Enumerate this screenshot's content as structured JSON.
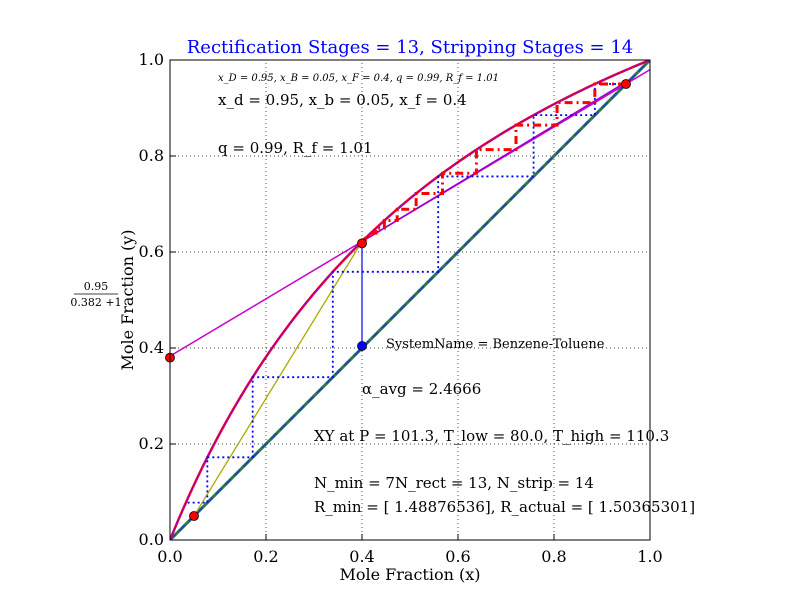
{
  "chart_data": {
    "type": "line",
    "title": "Rectification Stages = 13, Stripping Stages = 14",
    "xlabel": "Mole Fraction (x)",
    "ylabel": "Mole Fraction (y)",
    "xlim": [
      0.0,
      1.0
    ],
    "ylim": [
      0.0,
      1.0
    ],
    "xticks": [
      "0.0",
      "0.2",
      "0.4",
      "0.6",
      "0.8",
      "1.0"
    ],
    "yticks": [
      "0.0",
      "0.2",
      "0.4",
      "0.6",
      "0.8",
      "1.0"
    ],
    "grid": true,
    "side_label_numerator": "0.95",
    "side_label_denominator": "0.382 +1",
    "annotations": {
      "params_small": "x_D = 0.95, x_B = 0.05, x_F = 0.4, q = 0.99, R_f = 1.01",
      "line_xd": "x_d = 0.95, x_b = 0.05, x_f = 0.4",
      "line_q": "q = 0.99, R_f = 1.01",
      "system": "SystemName = Benzene-Toluene",
      "alpha": "α_avg = 2.4666",
      "xy": "XY at P = 101.3, T_low = 80.0, T_high = 110.3",
      "nmin": "N_min = 7N_rect = 13, N_strip = 14",
      "rmin": "R_min = [ 1.48876536], R_actual = [ 1.50365301]"
    },
    "alpha": 2.4666,
    "xd": 0.95,
    "xb": 0.05,
    "xf": 0.4,
    "q": 0.99,
    "rf": 1.01,
    "series": [
      {
        "kind": "equilibrium",
        "color": "#ff0000"
      },
      {
        "kind": "equilibrium-overlay",
        "color": "#9900cc"
      },
      {
        "kind": "diagonal",
        "color": "#2a7a4a"
      },
      {
        "kind": "rectifying-operating-line",
        "color": "#cc00cc"
      },
      {
        "kind": "stripping-operating-line",
        "color": "#aaaa00"
      },
      {
        "kind": "q-line",
        "color": "#0000ff"
      },
      {
        "kind": "stages-actual",
        "color": "#ff0000"
      },
      {
        "kind": "stages-minimum",
        "color": "#0000ff"
      }
    ],
    "points": [
      {
        "x": 0.0,
        "y": 0.38,
        "color": "#ff0000"
      },
      {
        "x": 0.4,
        "y": 0.618,
        "color": "#ff0000"
      },
      {
        "x": 0.4,
        "y": 0.404,
        "color": "#0000ff"
      },
      {
        "x": 0.05,
        "y": 0.05,
        "color": "#ff0000"
      },
      {
        "x": 0.95,
        "y": 0.95,
        "color": "#ff0000"
      }
    ]
  }
}
